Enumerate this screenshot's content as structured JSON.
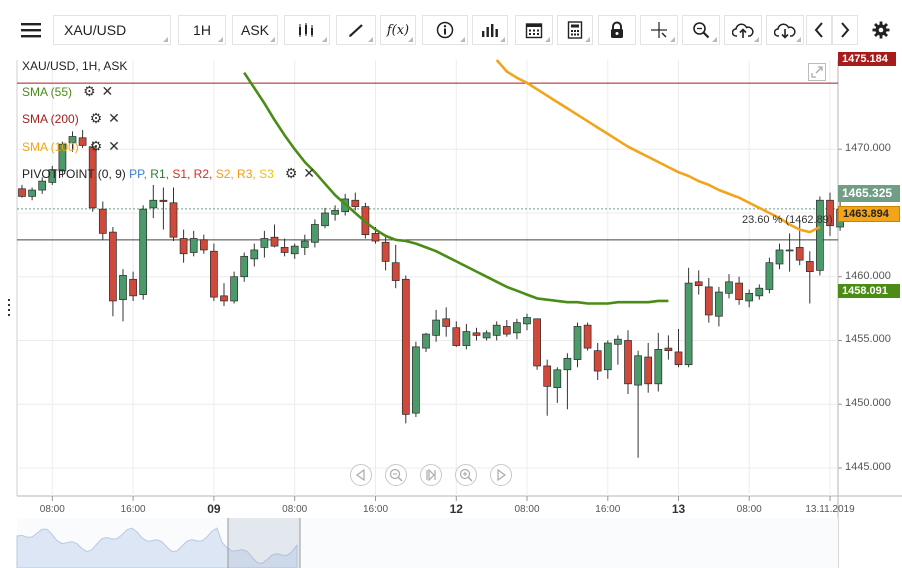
{
  "toolbar": {
    "symbol": "XAU/USD",
    "timeframe": "1H",
    "price_type": "ASK",
    "icons": [
      "menu-icon",
      "chart-type-icon",
      "draw-icon",
      "indicator-icon",
      "info-icon",
      "volume-icon",
      "calendar-icon",
      "calculator-icon",
      "lock-icon",
      "crosshair-icon",
      "zoom-icon",
      "upload-icon",
      "download-icon",
      "prev-icon",
      "next-icon",
      "settings-icon"
    ]
  },
  "legend": {
    "title": "XAU/USD, 1H, ASK",
    "sma55": "SMA (55)",
    "sma200": "SMA (200)",
    "sma100": "SMA (100)",
    "pivot_prefix": "PIVOTPOINT (0, 9)",
    "pivot_items": [
      {
        "label": "PP",
        "color": "#3a7bd5"
      },
      {
        "label": "R1",
        "color": "#2e7d32"
      },
      {
        "label": "S1",
        "color": "#d32f2f"
      },
      {
        "label": "R2",
        "color": "#d32f2f"
      },
      {
        "label": "S2",
        "color": "#f39c12"
      },
      {
        "label": "R3",
        "color": "#f39c12"
      },
      {
        "label": "S3",
        "color": "#f1c40f"
      }
    ]
  },
  "colors": {
    "up": "#4b9a6a",
    "down": "#d04a3c",
    "sma55": "#4a8c16",
    "sma100": "#f2a51a",
    "sma200": "#a61c1c",
    "grid": "#ececec"
  },
  "price_tags": {
    "sma200": "1475.184",
    "current": "1465.325",
    "sma100": "1463.894",
    "sma55": "1458.091"
  },
  "fib_label": "23.60 % (1462.89)",
  "chart_data": {
    "type": "candlestick",
    "ylim": [
      1442.8,
      1477.0
    ],
    "y_ticks": [
      "1470.000",
      "1465.000",
      "1460.000",
      "1455.000",
      "1450.000",
      "1445.000"
    ],
    "y_tick_values": [
      1470,
      1465,
      1460,
      1455,
      1450,
      1445
    ],
    "x_labels": [
      {
        "label": "08:00",
        "idx": 3,
        "bold": false
      },
      {
        "label": "16:00",
        "idx": 11,
        "bold": false
      },
      {
        "label": "09",
        "idx": 19,
        "bold": true
      },
      {
        "label": "08:00",
        "idx": 27,
        "bold": false
      },
      {
        "label": "16:00",
        "idx": 35,
        "bold": false
      },
      {
        "label": "12",
        "idx": 43,
        "bold": true
      },
      {
        "label": "08:00",
        "idx": 50,
        "bold": false
      },
      {
        "label": "16:00",
        "idx": 58,
        "bold": false
      },
      {
        "label": "13",
        "idx": 65,
        "bold": true
      },
      {
        "label": "08:00",
        "idx": 72,
        "bold": false
      },
      {
        "label": "13.11.2019",
        "idx": 80,
        "bold": false
      }
    ],
    "candles": [
      [
        1466.9,
        1467.2,
        1466.2,
        1466.3
      ],
      [
        1466.3,
        1467.0,
        1466.0,
        1466.8
      ],
      [
        1466.8,
        1467.8,
        1466.5,
        1467.5
      ],
      [
        1467.4,
        1468.7,
        1467.2,
        1468.4
      ],
      [
        1468.3,
        1470.6,
        1467.8,
        1470.4
      ],
      [
        1470.5,
        1471.4,
        1469.8,
        1471.0
      ],
      [
        1470.9,
        1471.5,
        1470.1,
        1470.3
      ],
      [
        1470.2,
        1470.6,
        1465.1,
        1465.4
      ],
      [
        1465.3,
        1465.9,
        1462.9,
        1463.4
      ],
      [
        1463.5,
        1463.9,
        1456.9,
        1458.1
      ],
      [
        1458.2,
        1460.6,
        1456.5,
        1460.1
      ],
      [
        1459.8,
        1460.4,
        1458.1,
        1458.5
      ],
      [
        1458.6,
        1465.6,
        1458.2,
        1465.3
      ],
      [
        1465.4,
        1467.2,
        1464.6,
        1466.0
      ],
      [
        1466.0,
        1467.0,
        1463.7,
        1465.9
      ],
      [
        1465.8,
        1467.0,
        1462.8,
        1463.1
      ],
      [
        1463.0,
        1463.7,
        1461.1,
        1461.8
      ],
      [
        1461.9,
        1463.6,
        1461.6,
        1463.0
      ],
      [
        1462.9,
        1463.3,
        1461.8,
        1462.1
      ],
      [
        1462.0,
        1462.6,
        1458.1,
        1458.4
      ],
      [
        1458.5,
        1459.5,
        1457.7,
        1458.1
      ],
      [
        1458.1,
        1460.4,
        1457.9,
        1460.0
      ],
      [
        1460.0,
        1461.9,
        1459.6,
        1461.6
      ],
      [
        1461.4,
        1462.6,
        1460.8,
        1462.1
      ],
      [
        1462.3,
        1463.6,
        1461.5,
        1463.0
      ],
      [
        1463.1,
        1464.1,
        1462.3,
        1462.4
      ],
      [
        1462.3,
        1463.0,
        1461.6,
        1461.9
      ],
      [
        1461.8,
        1462.6,
        1461.4,
        1462.4
      ],
      [
        1462.3,
        1463.3,
        1461.7,
        1462.8
      ],
      [
        1462.7,
        1464.5,
        1462.3,
        1464.1
      ],
      [
        1464.0,
        1465.4,
        1463.8,
        1465.0
      ],
      [
        1464.9,
        1465.6,
        1464.4,
        1465.2
      ],
      [
        1465.1,
        1466.5,
        1464.8,
        1466.1
      ],
      [
        1466.0,
        1466.6,
        1465.2,
        1465.5
      ],
      [
        1465.5,
        1465.8,
        1463.0,
        1463.3
      ],
      [
        1463.4,
        1463.9,
        1462.6,
        1462.8
      ],
      [
        1462.7,
        1463.3,
        1460.5,
        1461.2
      ],
      [
        1461.1,
        1462.5,
        1459.1,
        1459.7
      ],
      [
        1459.8,
        1460.1,
        1448.5,
        1449.2
      ],
      [
        1449.3,
        1454.9,
        1449.0,
        1454.5
      ],
      [
        1454.4,
        1455.6,
        1454.1,
        1455.5
      ],
      [
        1455.4,
        1457.4,
        1454.9,
        1456.6
      ],
      [
        1456.7,
        1457.6,
        1455.3,
        1456.1
      ],
      [
        1456.0,
        1456.5,
        1454.5,
        1454.6
      ],
      [
        1454.6,
        1456.3,
        1454.3,
        1455.7
      ],
      [
        1455.6,
        1456.0,
        1455.0,
        1455.4
      ],
      [
        1455.2,
        1455.8,
        1455.0,
        1455.6
      ],
      [
        1455.4,
        1456.5,
        1455.0,
        1456.2
      ],
      [
        1456.1,
        1456.6,
        1455.3,
        1455.5
      ],
      [
        1455.6,
        1456.7,
        1455.1,
        1456.4
      ],
      [
        1456.3,
        1457.1,
        1455.8,
        1456.8
      ],
      [
        1456.7,
        1456.7,
        1452.7,
        1453.0
      ],
      [
        1453.0,
        1453.5,
        1449.1,
        1451.4
      ],
      [
        1451.3,
        1452.9,
        1450.1,
        1452.7
      ],
      [
        1452.7,
        1454.0,
        1449.6,
        1453.6
      ],
      [
        1453.5,
        1456.4,
        1452.9,
        1456.1
      ],
      [
        1456.2,
        1456.4,
        1454.2,
        1454.4
      ],
      [
        1454.2,
        1454.8,
        1451.9,
        1452.6
      ],
      [
        1452.7,
        1455.0,
        1452.0,
        1454.8
      ],
      [
        1454.7,
        1455.4,
        1453.1,
        1455.1
      ],
      [
        1455.0,
        1455.8,
        1450.8,
        1451.6
      ],
      [
        1451.5,
        1454.2,
        1445.8,
        1453.8
      ],
      [
        1453.7,
        1454.8,
        1450.9,
        1451.6
      ],
      [
        1451.6,
        1455.6,
        1451.0,
        1454.3
      ],
      [
        1454.4,
        1455.4,
        1453.5,
        1454.2
      ],
      [
        1454.1,
        1455.9,
        1452.9,
        1453.1
      ],
      [
        1453.1,
        1460.7,
        1452.9,
        1459.5
      ],
      [
        1459.6,
        1460.5,
        1458.6,
        1459.3
      ],
      [
        1459.2,
        1459.9,
        1456.4,
        1457.0
      ],
      [
        1456.9,
        1459.2,
        1456.1,
        1458.8
      ],
      [
        1458.7,
        1460.2,
        1458.3,
        1459.6
      ],
      [
        1459.5,
        1460.0,
        1457.8,
        1458.2
      ],
      [
        1458.1,
        1459.0,
        1457.6,
        1458.7
      ],
      [
        1458.5,
        1459.4,
        1458.2,
        1459.1
      ],
      [
        1459.0,
        1461.5,
        1458.7,
        1461.1
      ],
      [
        1461.0,
        1462.6,
        1460.6,
        1462.1
      ],
      [
        1462.1,
        1463.4,
        1460.4,
        1462.1
      ],
      [
        1462.3,
        1464.4,
        1460.9,
        1461.3
      ],
      [
        1461.2,
        1462.0,
        1457.9,
        1460.4
      ],
      [
        1460.5,
        1466.3,
        1460.1,
        1466.0
      ],
      [
        1466.0,
        1466.6,
        1463.2,
        1464.0
      ],
      [
        1463.9,
        1466.4,
        1463.6,
        1465.3
      ]
    ],
    "sma55_start_idx": 22,
    "sma55": [
      1476.0,
      1474.8,
      1473.6,
      1472.3,
      1471.1,
      1470.0,
      1469.0,
      1468.2,
      1467.3,
      1466.4,
      1465.7,
      1465.0,
      1464.3,
      1463.7,
      1463.2,
      1462.9,
      1462.8,
      1462.6,
      1462.3,
      1462.0,
      1461.6,
      1461.2,
      1460.8,
      1460.4,
      1460.0,
      1459.6,
      1459.2,
      1458.9,
      1458.6,
      1458.3,
      1458.2,
      1458.1,
      1458.0,
      1458.0,
      1457.9,
      1457.9,
      1457.9,
      1458.0,
      1458.0,
      1458.0,
      1458.0,
      1458.1,
      1458.1
    ],
    "sma100_start_idx": 47,
    "sma100": [
      1477.0,
      1476.1,
      1475.6,
      1475.2,
      1474.7,
      1474.2,
      1473.7,
      1473.2,
      1472.7,
      1472.2,
      1471.7,
      1471.2,
      1470.7,
      1470.2,
      1469.8,
      1469.4,
      1469.0,
      1468.6,
      1468.2,
      1467.9,
      1467.5,
      1467.2,
      1466.8,
      1466.5,
      1466.2,
      1465.8,
      1465.4,
      1465.0,
      1464.6,
      1464.1,
      1463.7,
      1463.5,
      1463.9
    ],
    "sma200_value": 1475.184,
    "fib_level": 1462.89,
    "current_price": 1465.325
  }
}
